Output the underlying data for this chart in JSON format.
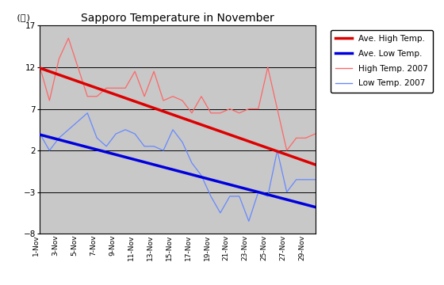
{
  "title": "Sapporo Temperature in November",
  "ylabel": "(℃)",
  "ylim": [
    -8,
    17
  ],
  "yticks": [
    -8,
    -3,
    2,
    7,
    12,
    17
  ],
  "bg_color": "#c8c8c8",
  "days": [
    1,
    2,
    3,
    4,
    5,
    6,
    7,
    8,
    9,
    10,
    11,
    12,
    13,
    14,
    15,
    16,
    17,
    18,
    19,
    20,
    21,
    22,
    23,
    24,
    25,
    26,
    27,
    28,
    29,
    30
  ],
  "xlabels": [
    "1-Nov",
    "3-Nov",
    "5-Nov",
    "7-Nov",
    "9-Nov",
    "11-Nov",
    "13-Nov",
    "15-Nov",
    "17-Nov",
    "19-Nov",
    "21-Nov",
    "23-Nov",
    "25-Nov",
    "27-Nov",
    "29-Nov"
  ],
  "xtick_days": [
    1,
    3,
    5,
    7,
    9,
    11,
    13,
    15,
    17,
    19,
    21,
    23,
    25,
    27,
    29
  ],
  "ave_high": [
    11.9,
    11.5,
    11.1,
    10.7,
    10.3,
    9.9,
    9.5,
    9.1,
    8.7,
    8.3,
    7.9,
    7.5,
    7.1,
    6.7,
    6.3,
    5.9,
    5.5,
    5.1,
    4.7,
    4.3,
    3.9,
    3.5,
    3.1,
    2.7,
    2.3,
    1.9,
    1.5,
    1.1,
    0.7,
    0.3
  ],
  "ave_low": [
    3.9,
    3.6,
    3.3,
    3.0,
    2.7,
    2.4,
    2.1,
    1.8,
    1.5,
    1.2,
    0.9,
    0.6,
    0.3,
    0.0,
    -0.3,
    -0.6,
    -0.9,
    -1.2,
    -1.5,
    -1.8,
    -2.1,
    -2.4,
    -2.7,
    -3.0,
    -3.3,
    -3.6,
    -3.9,
    -4.2,
    -4.5,
    -4.8
  ],
  "high_2007": [
    12.0,
    8.0,
    13.0,
    15.5,
    12.0,
    8.5,
    8.5,
    9.5,
    9.5,
    9.5,
    11.5,
    8.5,
    11.5,
    8.0,
    8.5,
    8.0,
    6.5,
    8.5,
    6.5,
    6.5,
    7.0,
    6.5,
    7.0,
    7.0,
    12.0,
    7.0,
    2.0,
    3.5,
    3.5,
    4.0
  ],
  "low_2007": [
    4.0,
    2.0,
    3.5,
    4.5,
    5.5,
    6.5,
    3.5,
    2.5,
    4.0,
    4.5,
    4.0,
    2.5,
    2.5,
    2.0,
    4.5,
    3.0,
    0.5,
    -1.0,
    -3.5,
    -5.5,
    -3.5,
    -3.5,
    -6.5,
    -3.0,
    -3.5,
    2.0,
    -3.0,
    -1.5,
    -1.5,
    -1.5
  ],
  "ave_high_color": "#dd0000",
  "ave_low_color": "#0000dd",
  "high_2007_color": "#ff6666",
  "low_2007_color": "#6688ff",
  "legend_labels": [
    "Ave. High Temp.",
    "Ave. Low Temp.",
    "High Temp. 2007",
    "Low Temp. 2007"
  ],
  "title_fontsize": 10,
  "axis_bg": "#c8c8c8",
  "fig_bg": "#ffffff"
}
